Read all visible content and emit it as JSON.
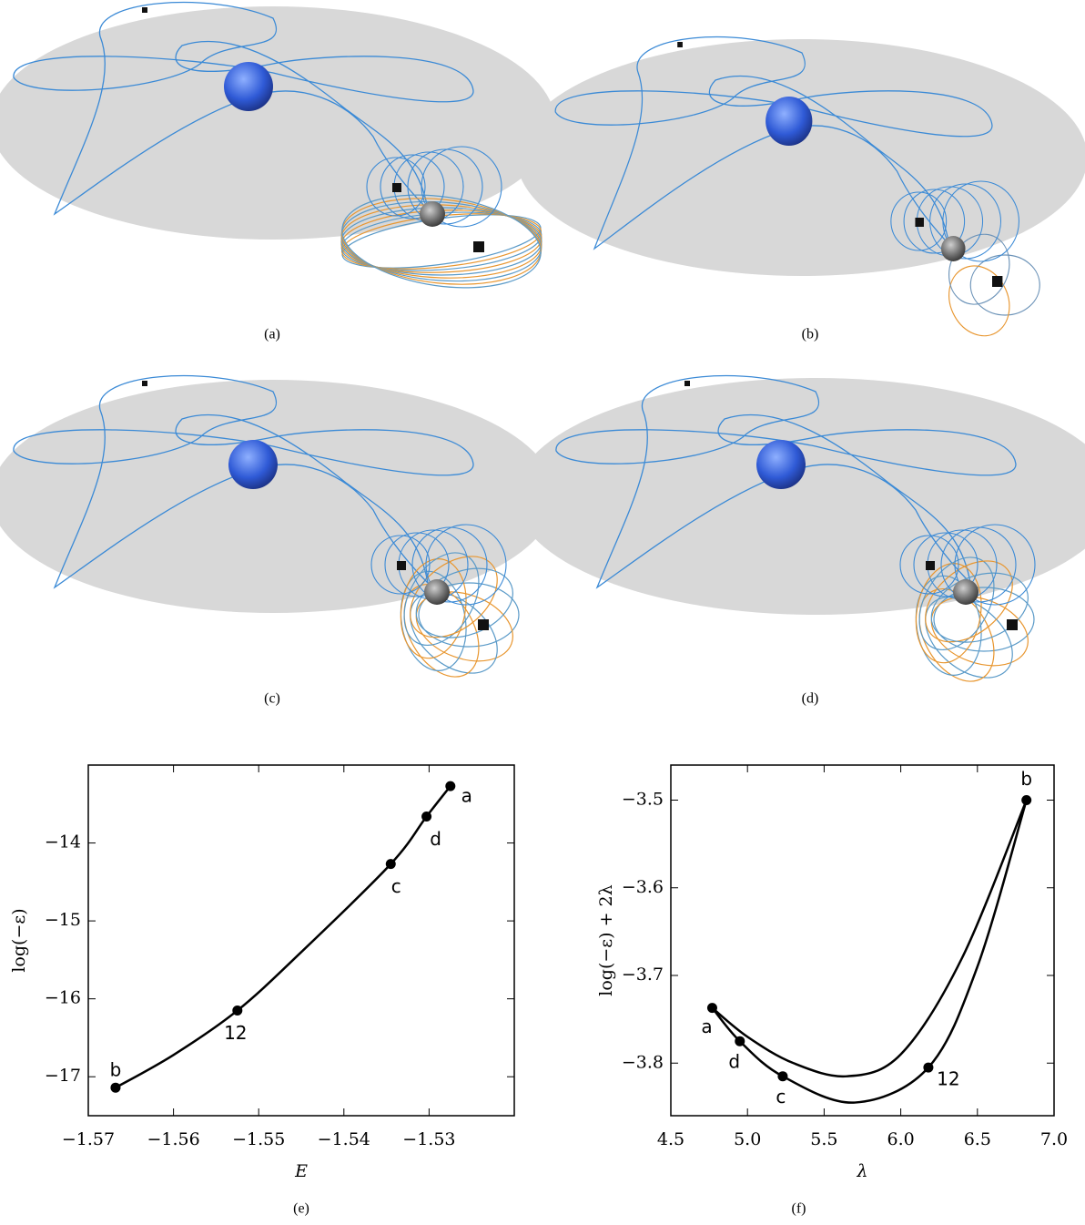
{
  "panels": [
    {
      "caption": "(a)"
    },
    {
      "caption": "(b)"
    },
    {
      "caption": "(c)"
    },
    {
      "caption": "(d)"
    }
  ],
  "chart_data": [
    {
      "type": "line",
      "caption": "(e)",
      "xlabel": "E",
      "ylabel": "log(−ε)",
      "xlim": [
        -1.57,
        -1.52
      ],
      "ylim": [
        -17.5,
        -13.0
      ],
      "xticks": [
        {
          "value": -1.57,
          "label": "−1.57"
        },
        {
          "value": -1.56,
          "label": "−1.56"
        },
        {
          "value": -1.55,
          "label": "−1.55"
        },
        {
          "value": -1.54,
          "label": "−1.54"
        },
        {
          "value": -1.53,
          "label": "−1.53"
        }
      ],
      "yticks": [
        {
          "value": -17,
          "label": "−17"
        },
        {
          "value": -16,
          "label": "−16"
        },
        {
          "value": -15,
          "label": "−15"
        },
        {
          "value": -14,
          "label": "−14"
        }
      ],
      "series": [
        {
          "color": "#000000",
          "x": [
            -1.5668,
            -1.56,
            -1.5525,
            -1.545,
            -1.5345,
            -1.5303,
            -1.5275
          ],
          "values": [
            -17.14,
            -16.72,
            -16.15,
            -15.4,
            -14.27,
            -13.66,
            -13.27
          ]
        }
      ],
      "points": {
        "x": [
          -1.5275,
          -1.5303,
          -1.5345,
          -1.5525,
          -1.5668
        ],
        "values": [
          -13.27,
          -13.66,
          -14.27,
          -16.15,
          -17.14
        ],
        "labels": [
          "a",
          "d",
          "c",
          "12",
          "b"
        ]
      }
    },
    {
      "type": "line",
      "caption": "(f)",
      "xlabel": "λ",
      "ylabel": "log(−ε) + 2λ",
      "xlim": [
        4.5,
        7.0
      ],
      "ylim": [
        -3.86,
        -3.46
      ],
      "xticks": [
        4.5,
        {
          "value": 5,
          "label": "5.0"
        },
        5.5,
        {
          "value": 6,
          "label": "6.0"
        },
        6.5,
        {
          "value": 7,
          "label": "7.0"
        }
      ],
      "yticks": [
        {
          "value": -3.8,
          "label": "−3.8"
        },
        {
          "value": -3.7,
          "label": "−3.7"
        },
        {
          "value": -3.6,
          "label": "−3.6"
        },
        {
          "value": -3.5,
          "label": "−3.5"
        }
      ],
      "series": [
        {
          "color": "#000000",
          "x": [
            4.77,
            5.0,
            5.3,
            5.65,
            6.0,
            6.4,
            6.82
          ],
          "values": [
            -3.737,
            -3.77,
            -3.8,
            -3.815,
            -3.79,
            -3.68,
            -3.5
          ]
        },
        {
          "color": "#000000",
          "x": [
            4.77,
            4.95,
            5.23,
            5.7,
            6.18,
            6.5,
            6.82
          ],
          "values": [
            -3.737,
            -3.775,
            -3.815,
            -3.845,
            -3.805,
            -3.69,
            -3.5
          ]
        }
      ],
      "points": {
        "x": [
          4.77,
          4.95,
          5.23,
          6.18,
          6.82
        ],
        "values": [
          -3.737,
          -3.775,
          -3.815,
          -3.805,
          -3.5
        ],
        "labels": [
          "a",
          "d",
          "c",
          "12",
          "b"
        ]
      }
    }
  ]
}
